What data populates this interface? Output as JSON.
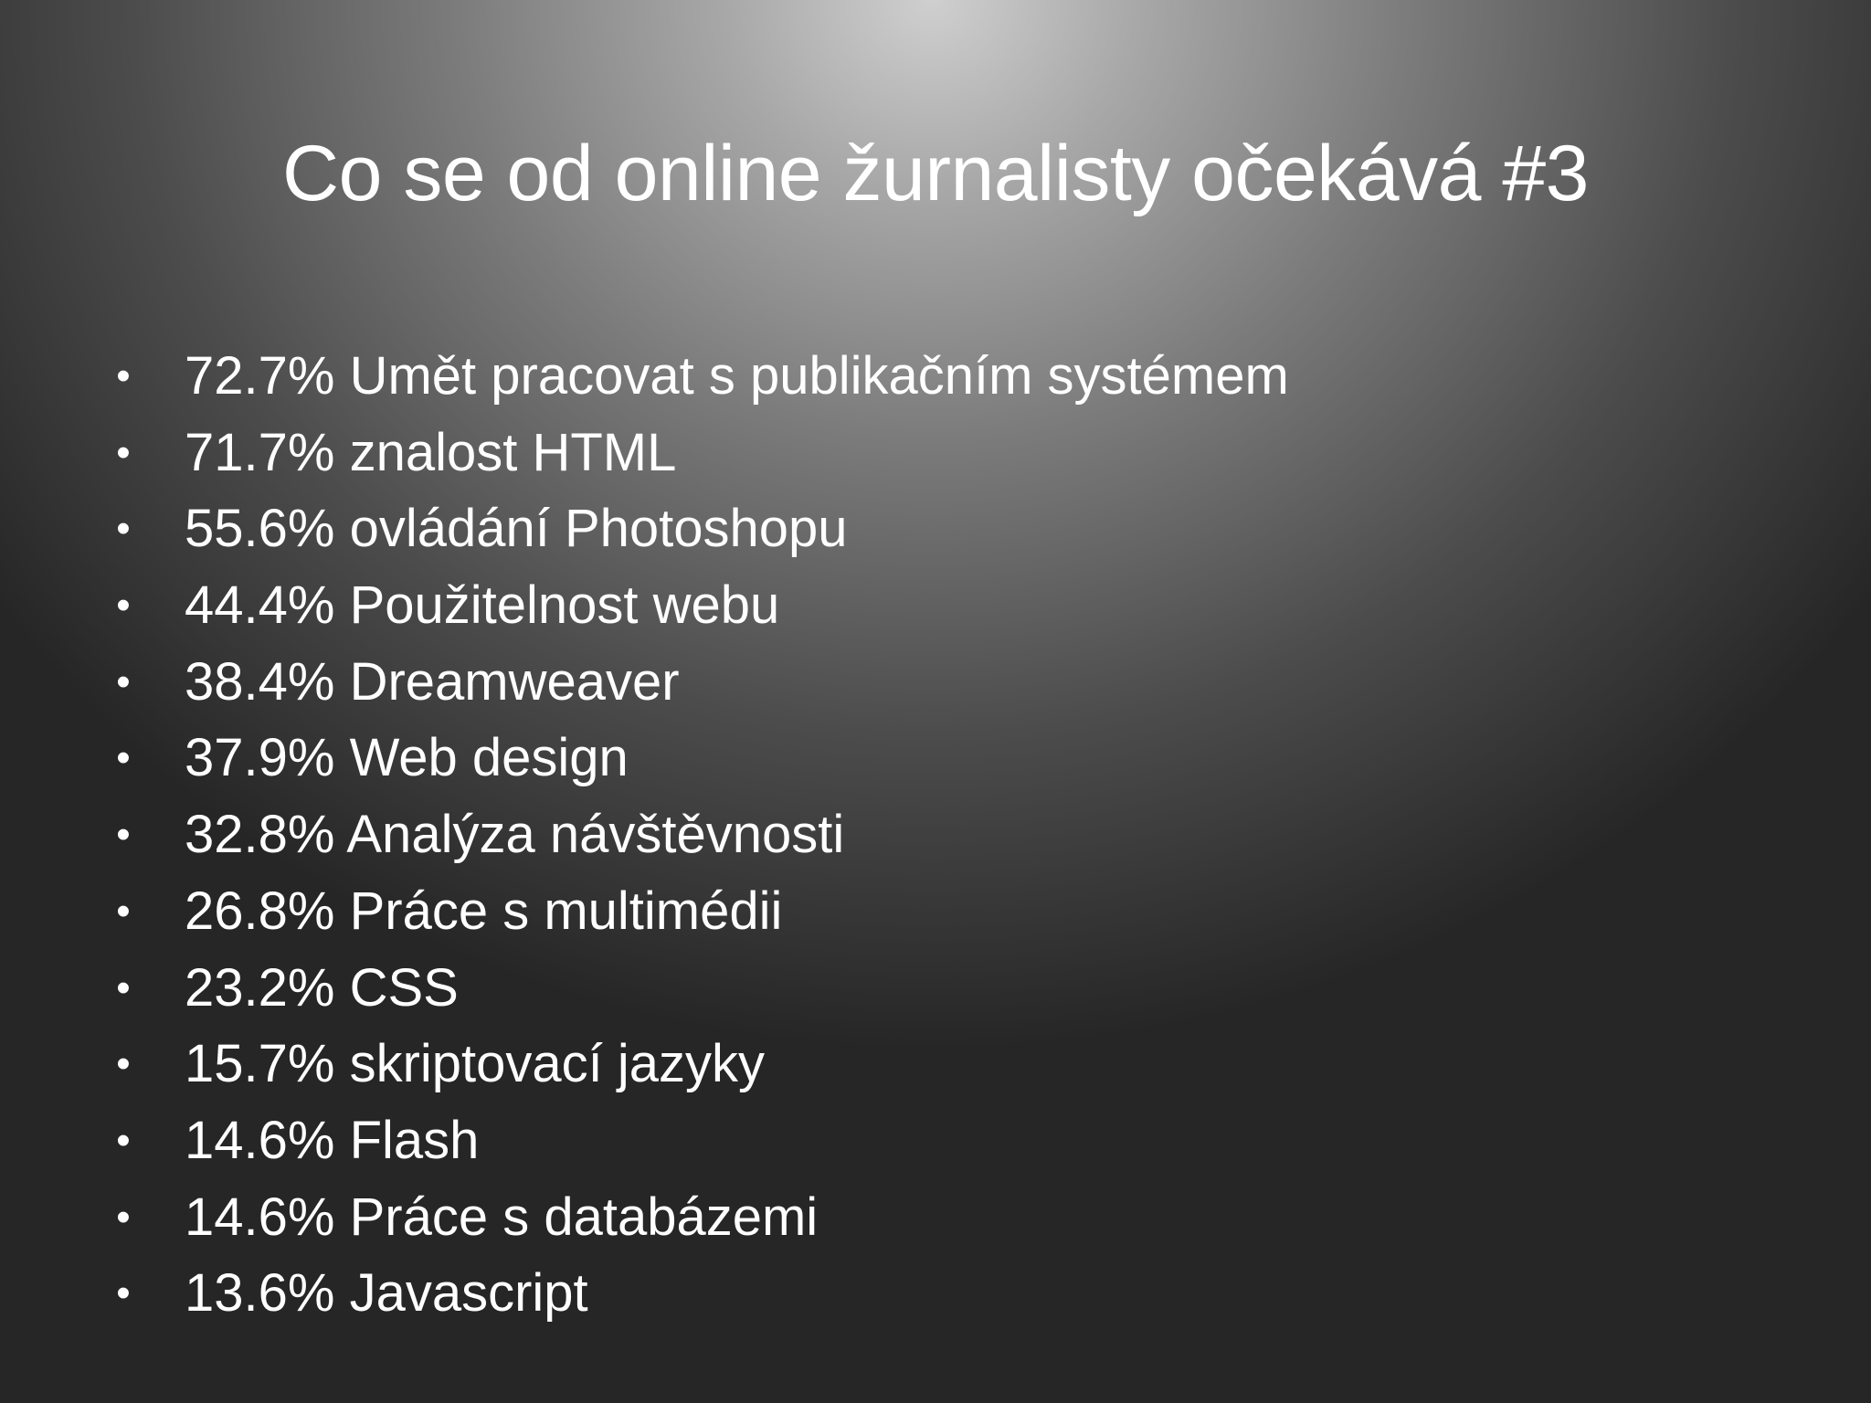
{
  "slide": {
    "title": "Co se od online žurnalisty očekává #3",
    "bullet_glyph": "•",
    "items": [
      "72.7% Umět pracovat s publikačním systémem",
      "71.7% znalost HTML",
      "55.6% ovládání Photoshopu",
      "44.4% Použitelnost webu",
      "38.4% Dreamweaver",
      "37.9% Web design",
      "32.8% Analýza návštěvnosti",
      "26.8% Práce s multimédii",
      "23.2% CSS",
      "15.7% skriptovací jazyky",
      "14.6% Flash",
      "14.6% Práce s databázemi",
      "13.6% Javascript"
    ]
  },
  "colors": {
    "text": "#ffffff",
    "background_light": "#cfcfcf",
    "background_dark": "#262626"
  }
}
